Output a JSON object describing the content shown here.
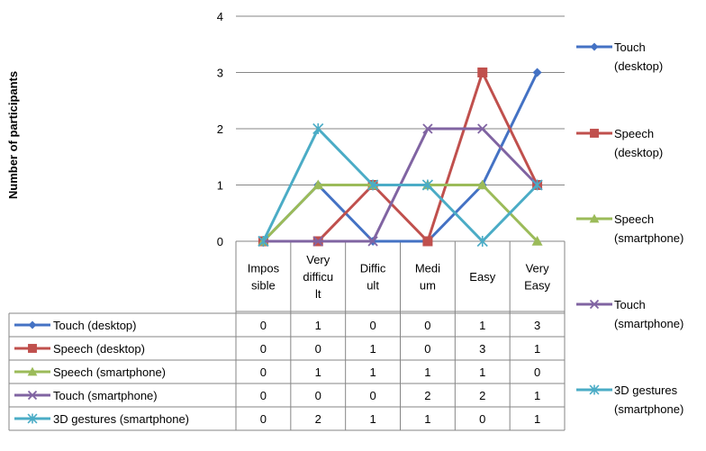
{
  "chart_data": {
    "type": "line",
    "title": "",
    "xlabel": "",
    "ylabel": "Number of participants",
    "ylim": [
      0,
      4
    ],
    "yticks": [
      "0",
      "1",
      "2",
      "3",
      "4"
    ],
    "grid": true,
    "legend_position": "right",
    "categories": [
      [
        "Impos",
        "sible"
      ],
      [
        "Very",
        "difficu",
        "lt"
      ],
      [
        "Diffic",
        "ult"
      ],
      [
        "Medi",
        "um"
      ],
      [
        "Easy"
      ],
      [
        "Very",
        "Easy"
      ]
    ],
    "series": [
      {
        "name": "Touch (desktop)",
        "legend_lines": [
          "Touch",
          "(desktop)"
        ],
        "color": "#4472C4",
        "marker": "diamond",
        "values": [
          0,
          1,
          0,
          0,
          1,
          3
        ]
      },
      {
        "name": "Speech (desktop)",
        "legend_lines": [
          "Speech",
          "(desktop)"
        ],
        "color": "#C0504D",
        "marker": "square",
        "values": [
          0,
          0,
          1,
          0,
          3,
          1
        ]
      },
      {
        "name": "Speech (smartphone)",
        "legend_lines": [
          "Speech",
          "(smartphone)"
        ],
        "color": "#9BBB59",
        "marker": "triangle",
        "values": [
          0,
          1,
          1,
          1,
          1,
          0
        ]
      },
      {
        "name": "Touch (smartphone)",
        "legend_lines": [
          "Touch",
          "(smartphone)"
        ],
        "color": "#8064A2",
        "marker": "x",
        "values": [
          0,
          0,
          0,
          2,
          2,
          1
        ]
      },
      {
        "name": "3D gestures (smartphone)",
        "legend_lines": [
          "3D gestures",
          "(smartphone)"
        ],
        "color": "#4BACC6",
        "marker": "star",
        "values": [
          0,
          2,
          1,
          1,
          0,
          1
        ]
      }
    ]
  }
}
